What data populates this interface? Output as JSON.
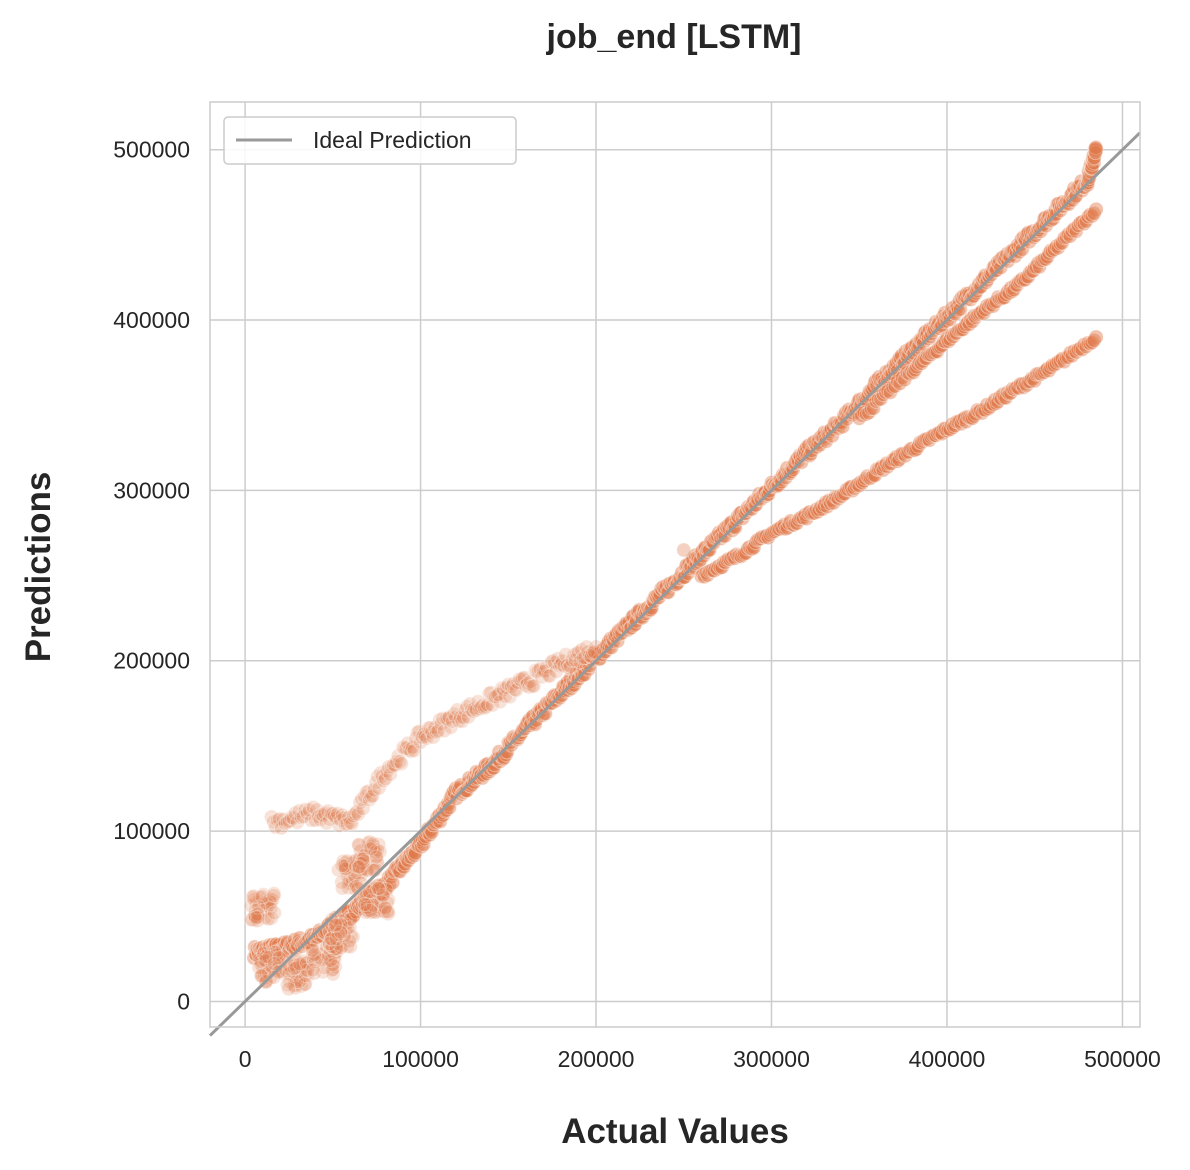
{
  "chart_data": {
    "type": "scatter",
    "title": "job_end [LSTM]",
    "xlabel": "Actual Values",
    "ylabel": "Predictions",
    "xlim": [
      -20000,
      510000
    ],
    "ylim": [
      -15000,
      528000
    ],
    "xticks": [
      0,
      100000,
      200000,
      300000,
      400000,
      500000
    ],
    "yticks": [
      0,
      100000,
      200000,
      300000,
      400000,
      500000
    ],
    "xtick_labels": [
      "0",
      "100000",
      "200000",
      "300000",
      "400000",
      "500000"
    ],
    "ytick_labels": [
      "0",
      "100000",
      "200000",
      "300000",
      "400000",
      "500000"
    ],
    "grid": true,
    "legend": {
      "position": "top-left",
      "entries": [
        "Ideal Prediction"
      ]
    },
    "colors": {
      "points": "#e07b4c",
      "ideal_line": "#999999",
      "grid": "#cccccc",
      "frame": "#cccccc"
    },
    "ideal_line": {
      "name": "Ideal Prediction",
      "x": [
        -20000,
        510000
      ],
      "y": [
        -20000,
        510000
      ]
    },
    "series": [
      {
        "description_band": "main-diagonal",
        "points": [
          [
            5000,
            29000
          ],
          [
            20000,
            31000
          ],
          [
            40000,
            37000
          ],
          [
            60000,
            52000
          ],
          [
            80000,
            68000
          ],
          [
            100000,
            92000
          ],
          [
            120000,
            122000
          ],
          [
            140000,
            138000
          ],
          [
            160000,
            160000
          ],
          [
            180000,
            181000
          ],
          [
            200000,
            202000
          ],
          [
            220000,
            222000
          ],
          [
            240000,
            242000
          ],
          [
            260000,
            262000
          ],
          [
            280000,
            282000
          ],
          [
            300000,
            302000
          ],
          [
            320000,
            322000
          ],
          [
            340000,
            340000
          ],
          [
            360000,
            362000
          ],
          [
            380000,
            382000
          ],
          [
            400000,
            402000
          ],
          [
            420000,
            422000
          ],
          [
            440000,
            442000
          ],
          [
            460000,
            462000
          ],
          [
            480000,
            482000
          ],
          [
            485000,
            500000
          ]
        ]
      },
      {
        "description_band": "lower-branch",
        "points": [
          [
            260000,
            250000
          ],
          [
            280000,
            261000
          ],
          [
            300000,
            275000
          ],
          [
            320000,
            285000
          ],
          [
            340000,
            297000
          ],
          [
            360000,
            311000
          ],
          [
            380000,
            324000
          ],
          [
            400000,
            336000
          ],
          [
            420000,
            347000
          ],
          [
            440000,
            360000
          ],
          [
            460000,
            372000
          ],
          [
            485000,
            390000
          ]
        ]
      },
      {
        "description_band": "middle-branch",
        "points": [
          [
            350000,
            342000
          ],
          [
            380000,
            370000
          ],
          [
            400000,
            388000
          ],
          [
            420000,
            405000
          ],
          [
            440000,
            420000
          ],
          [
            460000,
            440000
          ],
          [
            485000,
            465000
          ]
        ]
      },
      {
        "description_band": "upper-left-band",
        "points": [
          [
            15000,
            105000
          ],
          [
            40000,
            110000
          ],
          [
            60000,
            105000
          ],
          [
            80000,
            135000
          ],
          [
            100000,
            155000
          ],
          [
            120000,
            167000
          ],
          [
            140000,
            177000
          ],
          [
            160000,
            187000
          ],
          [
            180000,
            198000
          ],
          [
            200000,
            208000
          ]
        ]
      },
      {
        "description_band": "low-cluster",
        "points": [
          [
            10000,
            55000
          ],
          [
            15000,
            20000
          ],
          [
            30000,
            15000
          ],
          [
            45000,
            25000
          ],
          [
            55000,
            40000
          ],
          [
            60000,
            75000
          ],
          [
            70000,
            85000
          ],
          [
            75000,
            60000
          ],
          [
            250000,
            265000
          ]
        ]
      }
    ]
  }
}
